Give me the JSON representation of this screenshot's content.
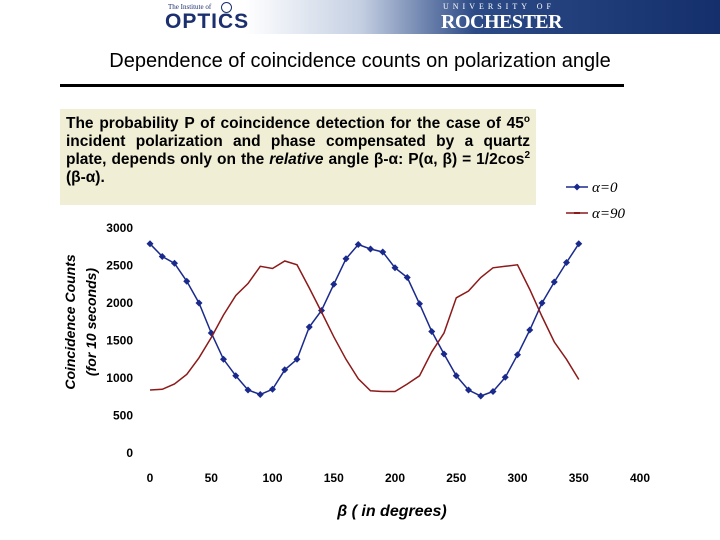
{
  "header": {
    "optics_small": "The Institute of",
    "optics_big": "OPTICS",
    "rochester_small": "UNIVERSITY OF",
    "rochester_big": "ROCHESTER"
  },
  "title": "Dependence of coincidence counts on polarization angle",
  "note": {
    "line1": "The probability P of coincidence detection for the case of 45",
    "line1_sup": "o",
    "line1_end": " incident polarization and phase compensated by a quartz plate, depends only on the",
    "line3_italic": "relative",
    "line3_rest": " angle β-α:      P(α, β) = 1/2cos",
    "line3_sup": "2",
    "line3_end": " (β-α)."
  },
  "colors": {
    "series1": "#1a2a8c",
    "series2": "#8c1a1a",
    "note_bg": "#f0eed5",
    "banner_dark": "#142f6b"
  },
  "chart_data": {
    "type": "line",
    "title": "",
    "xlabel": "β ( in degrees)",
    "ylabel": "Coincidence Counts",
    "ylabel2": "(for 10 seconds)",
    "xlim": [
      0,
      400
    ],
    "ylim": [
      0,
      3000
    ],
    "xticks": [
      0,
      50,
      100,
      150,
      200,
      250,
      300,
      350,
      400
    ],
    "yticks": [
      0,
      500,
      1000,
      1500,
      2000,
      2500,
      3000
    ],
    "grid": false,
    "legend_position": "right",
    "series": [
      {
        "name": "α=0",
        "marker": "diamond",
        "x": [
          0,
          10,
          20,
          30,
          40,
          50,
          60,
          70,
          80,
          90,
          100,
          110,
          120,
          130,
          140,
          150,
          160,
          170,
          180,
          190,
          200,
          210,
          220,
          230,
          240,
          250,
          260,
          270,
          280,
          290,
          300,
          310,
          320,
          330,
          340,
          350
        ],
        "y": [
          2790,
          2620,
          2530,
          2290,
          2000,
          1600,
          1250,
          1030,
          840,
          780,
          850,
          1110,
          1250,
          1680,
          1900,
          2250,
          2590,
          2780,
          2720,
          2680,
          2470,
          2340,
          1990,
          1620,
          1320,
          1030,
          840,
          760,
          820,
          1010,
          1310,
          1640,
          2000,
          2280,
          2540,
          2790
        ]
      },
      {
        "name": "α=90",
        "marker": "dash",
        "x": [
          0,
          10,
          20,
          30,
          40,
          50,
          60,
          70,
          80,
          90,
          100,
          110,
          120,
          130,
          140,
          150,
          160,
          170,
          180,
          190,
          200,
          210,
          220,
          230,
          240,
          250,
          260,
          270,
          280,
          290,
          300,
          310,
          320,
          330,
          340,
          350
        ],
        "y": [
          840,
          850,
          920,
          1050,
          1270,
          1540,
          1840,
          2100,
          2260,
          2490,
          2460,
          2560,
          2510,
          2200,
          1880,
          1550,
          1250,
          990,
          830,
          820,
          820,
          920,
          1030,
          1350,
          1600,
          2070,
          2160,
          2340,
          2470,
          2490,
          2510,
          2180,
          1820,
          1480,
          1250,
          980
        ]
      }
    ]
  }
}
